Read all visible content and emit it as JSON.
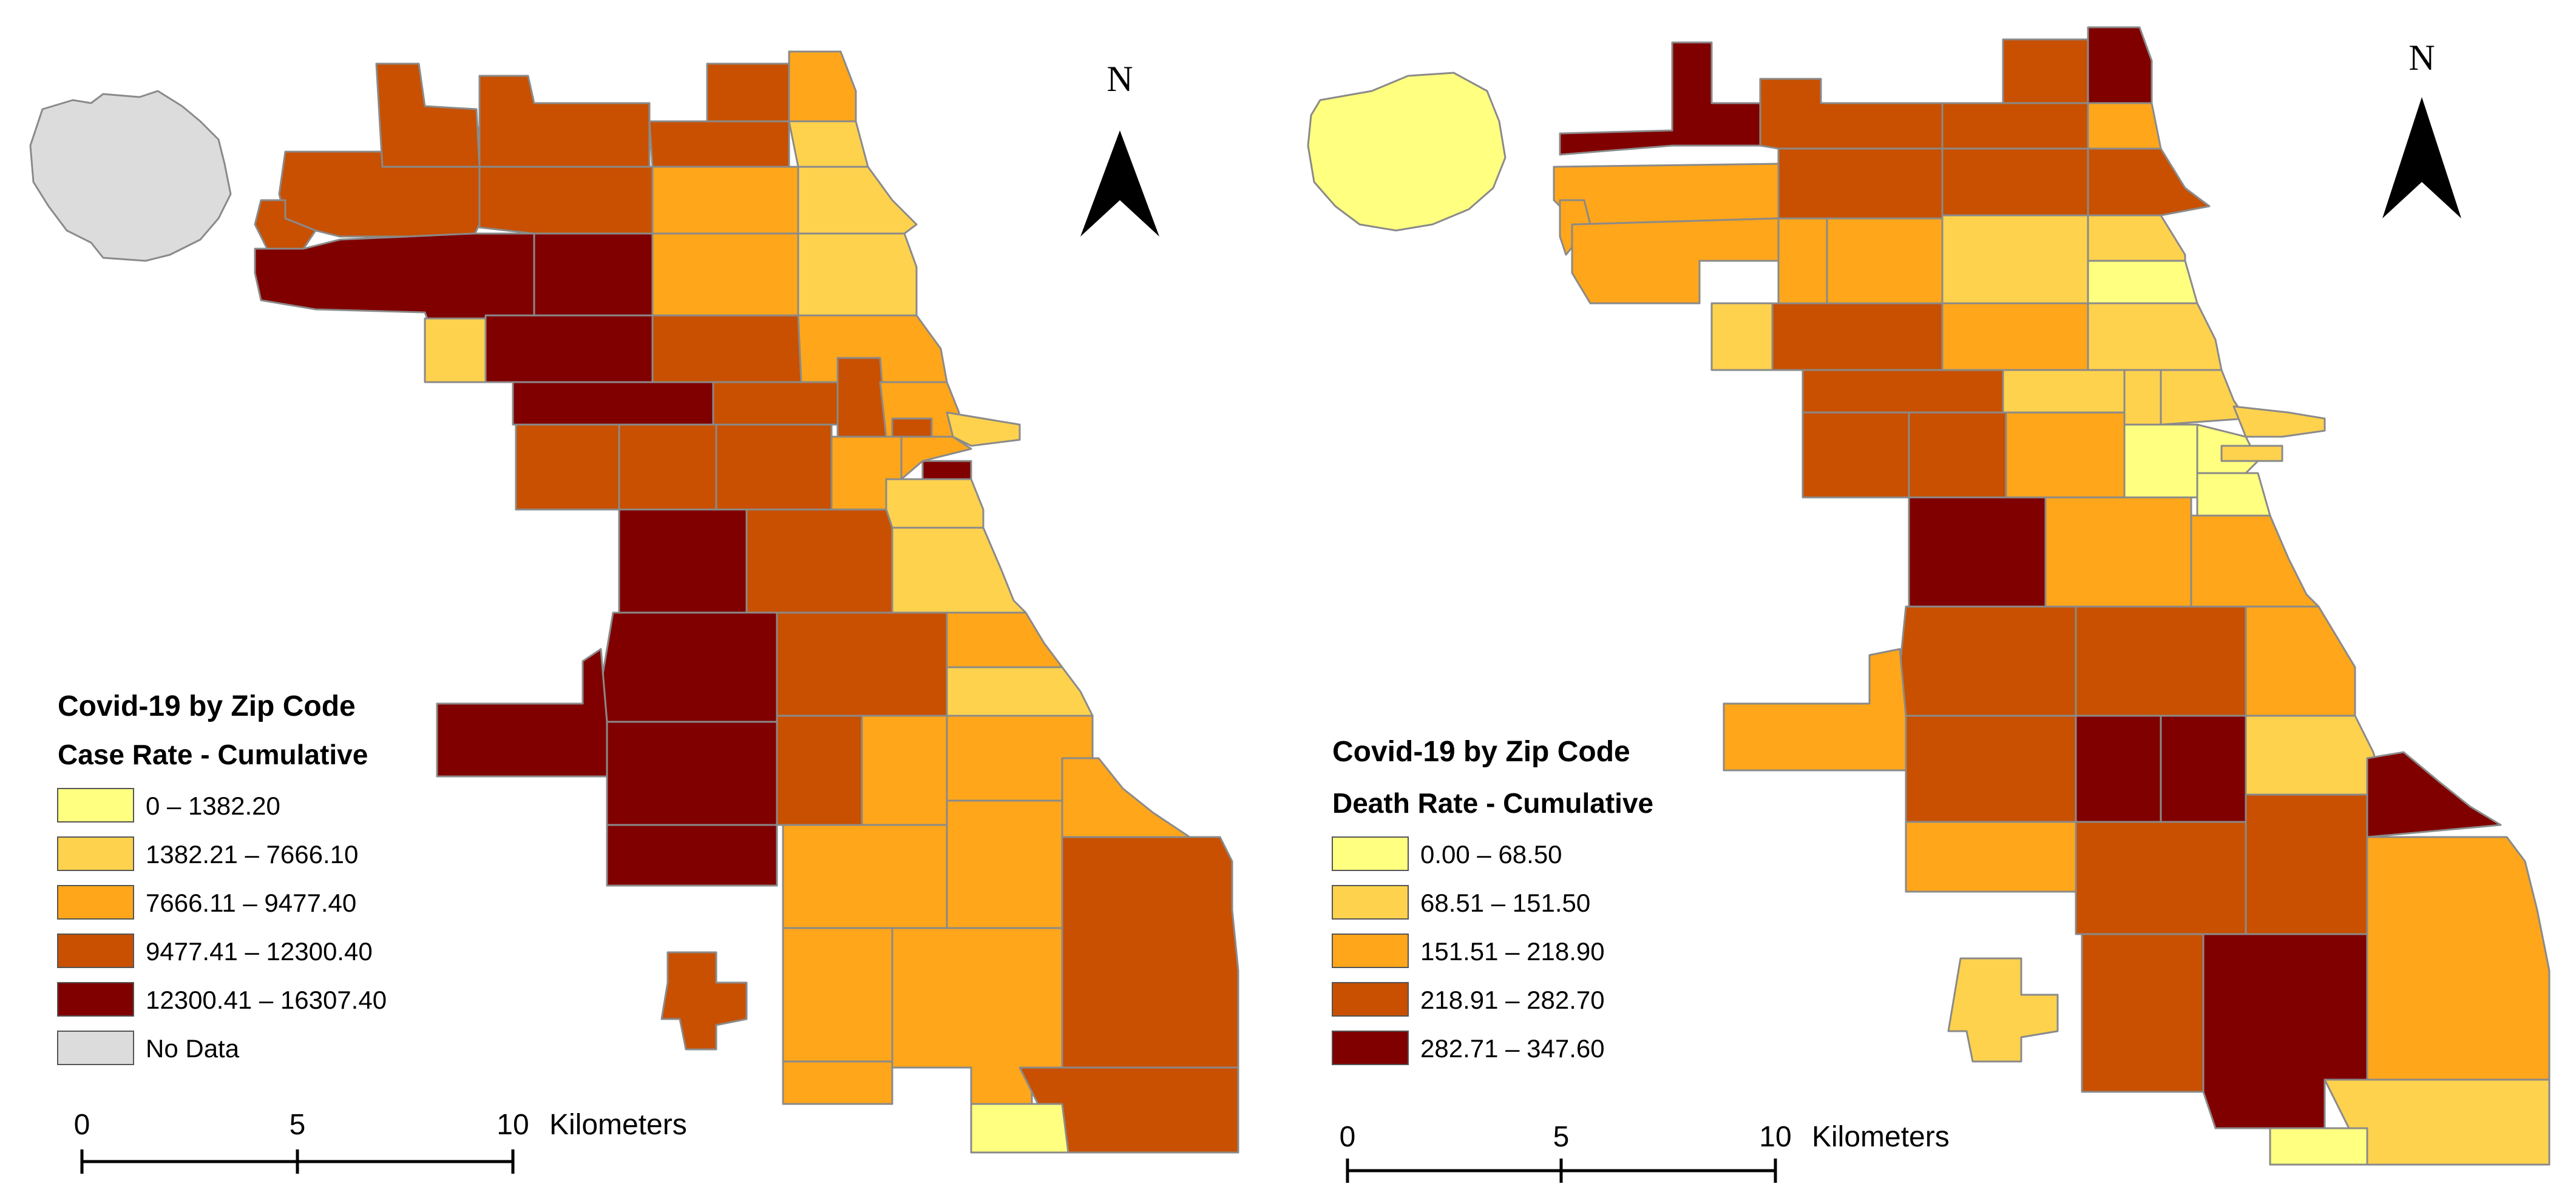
{
  "colors": {
    "c1": "#ffff80",
    "c2": "#ffd24d",
    "c3": "#ffa61a",
    "c4": "#c85000",
    "c5": "#800000",
    "nodata": "#dcdcdc",
    "border": "#8a8a8a"
  },
  "maps": [
    {
      "id": "case-rate",
      "north_label": "N",
      "legend": {
        "title": "Covid-19 by Zip Code",
        "subtitle": "Case Rate - Cumulative",
        "items": [
          {
            "label": "0 – 1382.20",
            "color": "c1"
          },
          {
            "label": "1382.21 – 7666.10",
            "color": "c2"
          },
          {
            "label": "7666.11 – 9477.40",
            "color": "c3"
          },
          {
            "label": "9477.41 – 12300.40",
            "color": "c4"
          },
          {
            "label": "12300.41 – 16307.40",
            "color": "c5"
          },
          {
            "label": "No Data",
            "color": "nodata"
          }
        ]
      },
      "scalebar": {
        "ticks": [
          "0",
          "5",
          "10"
        ],
        "unit": "Kilometers"
      }
    },
    {
      "id": "death-rate",
      "north_label": "N",
      "legend": {
        "title": "Covid-19 by Zip Code",
        "subtitle": "Death Rate - Cumulative",
        "items": [
          {
            "label": "0.00 – 68.50",
            "color": "c1"
          },
          {
            "label": "68.51 – 151.50",
            "color": "c2"
          },
          {
            "label": "151.51 – 218.90",
            "color": "c3"
          },
          {
            "label": "218.91 – 282.70",
            "color": "c4"
          },
          {
            "label": "282.71 – 347.60",
            "color": "c5"
          }
        ]
      },
      "scalebar": {
        "ticks": [
          "0",
          "5",
          "10"
        ],
        "unit": "Kilometers"
      }
    }
  ]
}
